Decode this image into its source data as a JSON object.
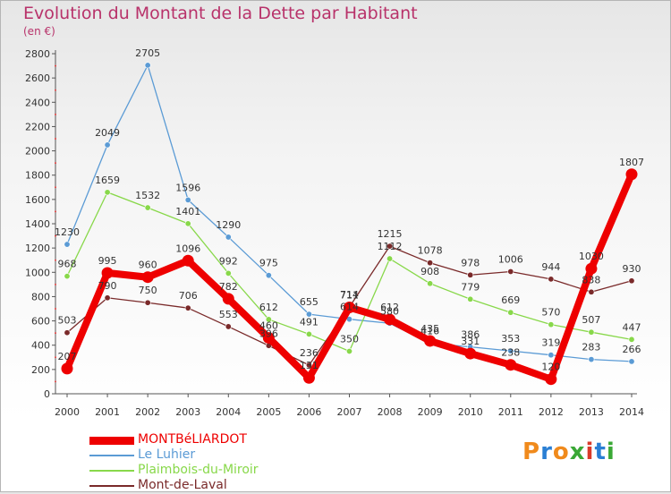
{
  "header": {
    "title": "Evolution du Montant de la Dette par Habitant",
    "subtitle": "(en €)"
  },
  "logo": {
    "text": "Proxiti",
    "colors": [
      "#f08a1c",
      "#2a7fd4",
      "#f08a1c",
      "#3aa836",
      "#d93a2a",
      "#2a7fd4",
      "#3aa836"
    ]
  },
  "chart_data": {
    "type": "line",
    "title": "Evolution du Montant de la Dette par Habitant",
    "subtitle": "(en €)",
    "xlabel": "",
    "ylabel": "",
    "x": [
      "2000",
      "2001",
      "2002",
      "2003",
      "2004",
      "2005",
      "2006",
      "2007",
      "2008",
      "2009",
      "2010",
      "2011",
      "2012",
      "2013",
      "2014"
    ],
    "ylim": [
      0,
      2800
    ],
    "yticks": [
      0,
      200,
      400,
      600,
      800,
      1000,
      1200,
      1400,
      1600,
      1800,
      2000,
      2200,
      2400,
      2600,
      2800
    ],
    "grid": false,
    "legend_position": "bottom-left",
    "series": [
      {
        "name": "MONTBéLIARDOT",
        "color": "#ee0000",
        "values": [
          207,
          995,
          960,
          1096,
          782,
          460,
          131,
          711,
          612,
          435,
          331,
          238,
          120,
          1030,
          1807
        ],
        "labels": [
          "207",
          "995",
          "960",
          "1096",
          "782",
          "460",
          "131",
          "711",
          "612",
          "435",
          "331",
          "238",
          "120",
          "1030",
          "1807"
        ]
      },
      {
        "name": "Le Luhier",
        "color": "#5b9bd5",
        "values": [
          1230,
          2049,
          2705,
          1596,
          1290,
          975,
          655,
          614,
          580,
          416,
          386,
          353,
          319,
          283,
          266
        ],
        "labels": [
          "1230",
          "2049",
          "2705",
          "1596",
          "1290",
          "975",
          "655",
          "614",
          "580",
          "416",
          "386",
          "353",
          "319",
          "283",
          "266"
        ]
      },
      {
        "name": "Plaimbois-du-Miroir",
        "color": "#88d84a",
        "values": [
          968,
          1659,
          1532,
          1401,
          992,
          612,
          491,
          350,
          1112,
          908,
          779,
          669,
          570,
          507,
          447
        ],
        "labels": [
          "968",
          "1659",
          "1532",
          "1401",
          "992",
          "612",
          "491",
          "350",
          "1112",
          "908",
          "779",
          "669",
          "570",
          "507",
          "447"
        ]
      },
      {
        "name": "Mont-de-Laval",
        "color": "#7a2a2a",
        "values": [
          503,
          790,
          750,
          706,
          553,
          396,
          236,
          714,
          1215,
          1078,
          978,
          1006,
          944,
          838,
          930
        ],
        "labels": [
          "503",
          "790",
          "750",
          "706",
          "553",
          "396",
          "236",
          "714",
          "1215",
          "1078",
          "978",
          "1006",
          "944",
          "838",
          "930"
        ]
      }
    ]
  }
}
